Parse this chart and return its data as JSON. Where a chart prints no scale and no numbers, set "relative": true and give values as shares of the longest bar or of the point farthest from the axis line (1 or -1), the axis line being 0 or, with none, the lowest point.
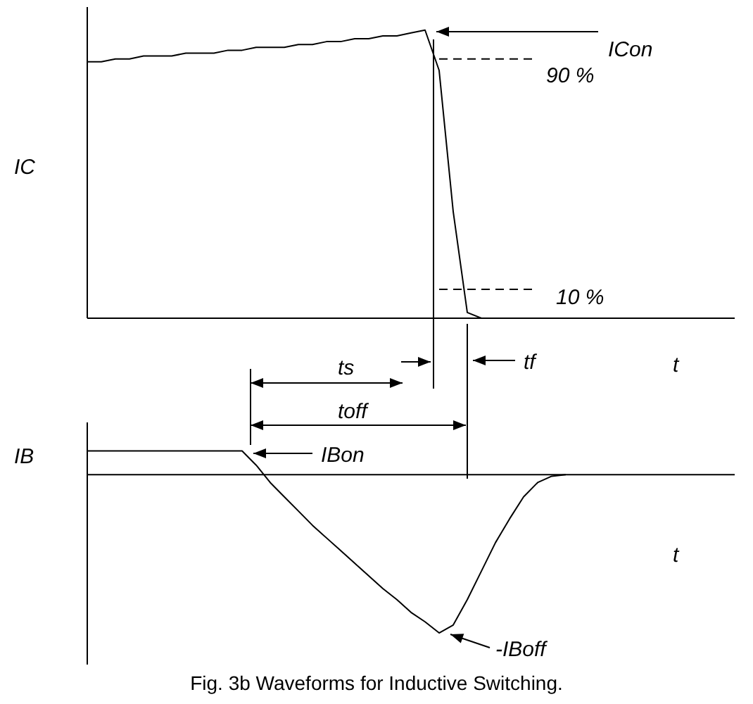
{
  "chart_data": [
    {
      "type": "line",
      "relative": true,
      "ylabel": "IC",
      "xlabel": "t",
      "categories": [
        null,
        null,
        null,
        null,
        null,
        null,
        null,
        null,
        null,
        null,
        null,
        null,
        null,
        null,
        null,
        null,
        null,
        null,
        null,
        null,
        null,
        null,
        null,
        null,
        null,
        null,
        null,
        null,
        null,
        null,
        null,
        null,
        null,
        null,
        null,
        null,
        null,
        null,
        null,
        null,
        null,
        null,
        null,
        null,
        null,
        null,
        null
      ],
      "series": [
        {
          "color": "#000000",
          "values": [
            0.89,
            0.89,
            0.9,
            0.9,
            0.91,
            0.91,
            0.91,
            0.92,
            0.92,
            0.92,
            0.93,
            0.93,
            0.94,
            0.94,
            0.94,
            0.95,
            0.95,
            0.96,
            0.96,
            0.97,
            0.97,
            0.98,
            0.98,
            0.99,
            1,
            0.86,
            0.37,
            0.02,
            0,
            0,
            0,
            0,
            0,
            0,
            0,
            0,
            0,
            0,
            0,
            0,
            0,
            null,
            null,
            null,
            null,
            null,
            null
          ]
        }
      ],
      "ref_lines": [
        {
          "axis": "y",
          "value": 0.9,
          "label": "90 %",
          "line_style": "dashed"
        },
        {
          "axis": "y",
          "value": 0.1,
          "label": "10 %",
          "line_style": "dashed"
        }
      ],
      "annotations": [
        "ICon",
        "ts",
        "toff",
        "tf"
      ]
    },
    {
      "type": "line",
      "relative": true,
      "ylabel": "IB",
      "xlabel": "t",
      "categories": [
        null,
        null,
        null,
        null,
        null,
        null,
        null,
        null,
        null,
        null,
        null,
        null,
        null,
        null,
        null,
        null,
        null,
        null,
        null,
        null,
        null,
        null,
        null,
        null,
        null,
        null,
        null,
        null,
        null,
        null,
        null,
        null,
        null,
        null,
        null,
        null,
        null,
        null,
        null,
        null,
        null,
        null,
        null,
        null,
        null,
        null,
        null
      ],
      "series": [
        {
          "color": "#000000",
          "values": [
            0.15,
            0.15,
            0.15,
            0.15,
            0.15,
            0.15,
            0.15,
            0.15,
            0.15,
            0.15,
            0.15,
            0.15,
            0.06,
            -0.05,
            -0.14,
            -0.23,
            -0.32,
            -0.4,
            -0.48,
            -0.56,
            -0.64,
            -0.72,
            -0.79,
            -0.87,
            -0.93,
            -1,
            -0.95,
            -0.79,
            -0.61,
            -0.43,
            -0.28,
            -0.14,
            -0.05,
            -0.01,
            0,
            null,
            null,
            null,
            null,
            null,
            null,
            null,
            null,
            null,
            null,
            null,
            null
          ]
        }
      ],
      "annotations": [
        "IBon",
        "-IBoff",
        "Fig. 3b  Waveforms for Inductive Switching."
      ]
    }
  ]
}
